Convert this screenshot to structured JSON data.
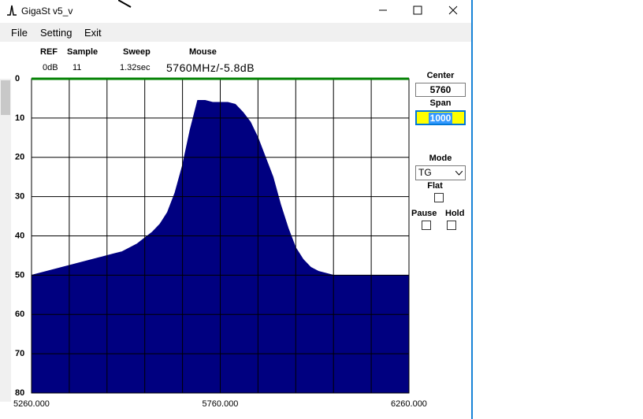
{
  "window": {
    "title": "GigaSt v5_v"
  },
  "menu": [
    "File",
    "Setting",
    "Exit"
  ],
  "header": {
    "labels": [
      "REF",
      "Sample",
      "Sweep",
      "Mouse"
    ],
    "values": [
      "0dB",
      "11",
      "1.32sec",
      "5760MHz/-5.8dB"
    ]
  },
  "controls": {
    "center_label": "Center",
    "center": "5760",
    "span_label": "Span",
    "span": "1000",
    "mode_label": "Mode",
    "mode": "TG",
    "flat_label": "Flat",
    "pause_label": "Pause",
    "hold_label": "Hold"
  },
  "chart_data": {
    "type": "area",
    "color": "#000080",
    "grid": true,
    "x": [
      5260,
      5280,
      5300,
      5320,
      5340,
      5360,
      5380,
      5400,
      5420,
      5440,
      5460,
      5480,
      5500,
      5520,
      5540,
      5560,
      5580,
      5600,
      5620,
      5640,
      5660,
      5680,
      5700,
      5720,
      5740,
      5760,
      5780,
      5800,
      5820,
      5840,
      5860,
      5880,
      5900,
      5920,
      5940,
      5960,
      5980,
      6000,
      6020,
      6040,
      6060,
      6080,
      6100,
      6120,
      6140,
      6160,
      6180,
      6200,
      6220,
      6240,
      6260
    ],
    "values": [
      50,
      49.5,
      49,
      48.5,
      48,
      47.5,
      47,
      46.5,
      46,
      45.5,
      45,
      44.5,
      44,
      43,
      42,
      40.5,
      39,
      37,
      34,
      29,
      22,
      13,
      5.5,
      5.5,
      6,
      6,
      6,
      6.5,
      8.5,
      11,
      15,
      20,
      25,
      32,
      38,
      43,
      46,
      48,
      49,
      49.5,
      50,
      50,
      50,
      50,
      50,
      50,
      50,
      50,
      50,
      50,
      50
    ],
    "xlim": [
      5260,
      6260
    ],
    "ylim": [
      80,
      0
    ],
    "xticks": [
      {
        "value": 5260,
        "label": "5260.000"
      },
      {
        "value": 5360,
        "label": null
      },
      {
        "value": 5460,
        "label": null
      },
      {
        "value": 5560,
        "label": null
      },
      {
        "value": 5660,
        "label": null
      },
      {
        "value": 5760,
        "label": "5760.000"
      },
      {
        "value": 5860,
        "label": null
      },
      {
        "value": 5960,
        "label": null
      },
      {
        "value": 6060,
        "label": null
      },
      {
        "value": 6160,
        "label": null
      },
      {
        "value": 6260,
        "label": "6260.000"
      }
    ],
    "yticks": [
      0,
      10,
      20,
      30,
      40,
      50,
      60,
      70,
      80
    ]
  }
}
